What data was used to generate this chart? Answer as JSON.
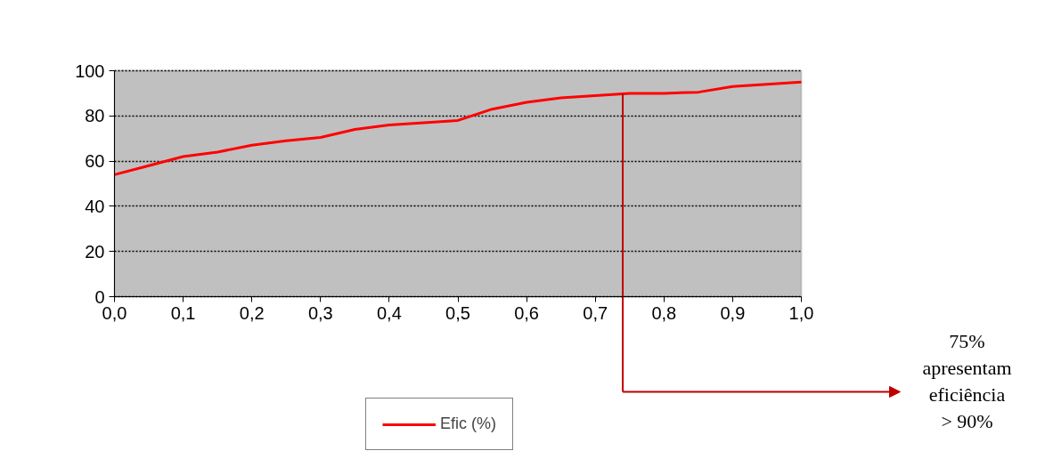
{
  "chart_data": {
    "type": "line",
    "x": [
      0.0,
      0.05,
      0.1,
      0.15,
      0.2,
      0.25,
      0.3,
      0.35,
      0.4,
      0.45,
      0.5,
      0.55,
      0.6,
      0.65,
      0.7,
      0.75,
      0.8,
      0.85,
      0.9,
      0.95,
      1.0
    ],
    "series": [
      {
        "name": "Efic (%)",
        "color": "#ff0000",
        "values": [
          54,
          58,
          62,
          64,
          67,
          69,
          70.5,
          74,
          76,
          77,
          78,
          83,
          86,
          88,
          89,
          90,
          90,
          90.5,
          93,
          94,
          95
        ]
      }
    ],
    "xlim": [
      0.0,
      1.0
    ],
    "xticks": [
      {
        "value": 0.0,
        "label": "0,0"
      },
      {
        "value": 0.1,
        "label": "0,1"
      },
      {
        "value": 0.2,
        "label": "0,2"
      },
      {
        "value": 0.3,
        "label": "0,3"
      },
      {
        "value": 0.4,
        "label": "0,4"
      },
      {
        "value": 0.5,
        "label": "0,5"
      },
      {
        "value": 0.6,
        "label": "0,6"
      },
      {
        "value": 0.7,
        "label": "0,7"
      },
      {
        "value": 0.8,
        "label": "0,8"
      },
      {
        "value": 0.9,
        "label": "0,9"
      },
      {
        "value": 1.0,
        "label": "1,0"
      }
    ],
    "ylim": [
      0,
      100
    ],
    "yticks": [
      0,
      20,
      40,
      60,
      80,
      100
    ],
    "grid": "y",
    "legend": "bottom",
    "marker": "none",
    "line_style": "solid",
    "ref_lines": [
      {
        "axis": "x",
        "value": 0.74,
        "color": "#c00000"
      }
    ],
    "annotations": [
      "75%\napresentam\neficiência\n> 90%"
    ]
  }
}
